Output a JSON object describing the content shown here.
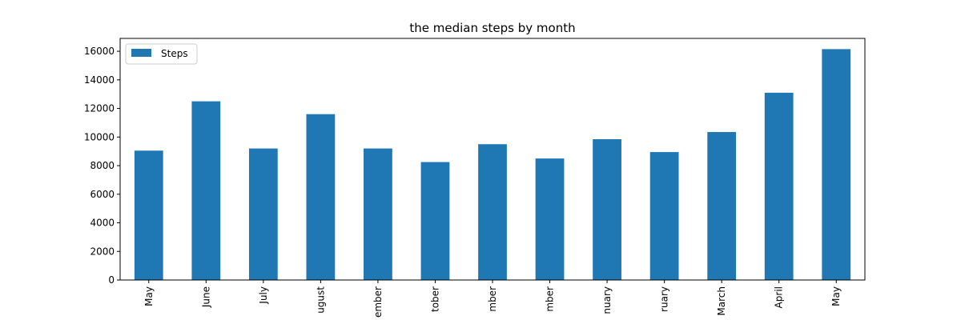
{
  "chart_data": {
    "type": "bar",
    "title": "the median steps by month",
    "xlabel": "",
    "ylabel": "",
    "categories": [
      "May",
      "June",
      "July",
      "ugust",
      "ember",
      "tober",
      "mber",
      "mber",
      "nuary",
      "ruary",
      "March",
      "April",
      "May"
    ],
    "series": [
      {
        "name": "Steps",
        "color": "#1f77b4",
        "values": [
          9050,
          12500,
          9200,
          11600,
          9200,
          8250,
          9500,
          8500,
          9850,
          8950,
          10350,
          13100,
          16150
        ]
      }
    ],
    "ylim": [
      0,
      16900
    ],
    "yticks": [
      0,
      2000,
      4000,
      6000,
      8000,
      10000,
      12000,
      14000,
      16000
    ],
    "grid": false,
    "legend_position": "top-left"
  }
}
